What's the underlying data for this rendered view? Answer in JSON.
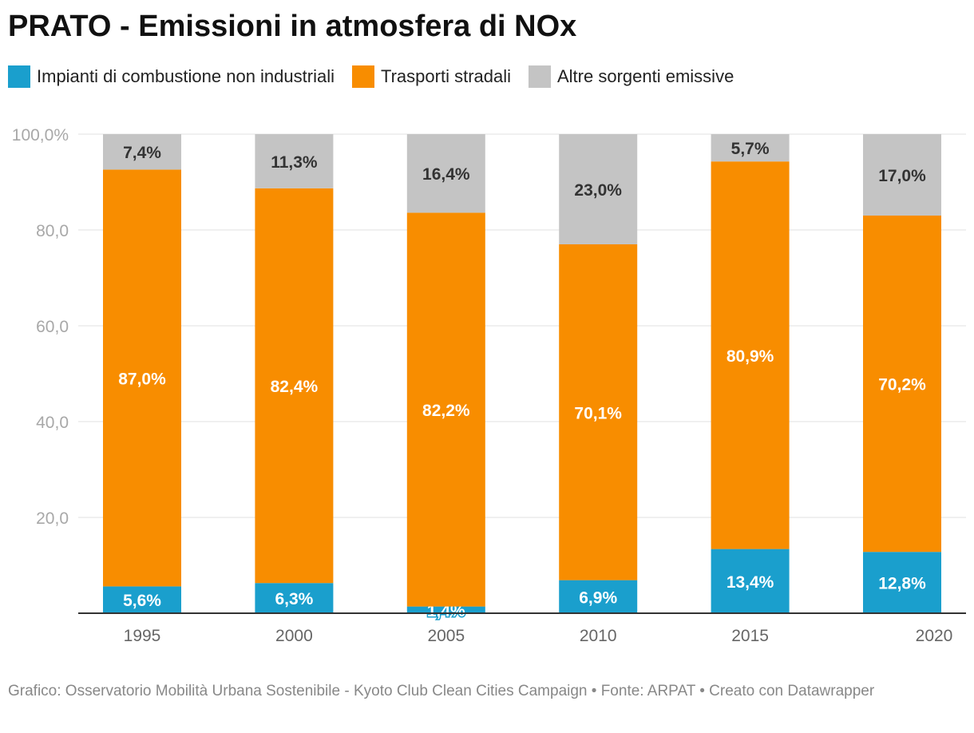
{
  "title": "PRATO - Emissioni in atmosfera di NOx",
  "legend": [
    {
      "label": "Impianti di combustione non industriali",
      "color": "#1a9fcd"
    },
    {
      "label": "Trasporti stradali",
      "color": "#f88d00"
    },
    {
      "label": "Altre sorgenti emissive",
      "color": "#c4c4c4"
    }
  ],
  "footer": "Grafico: Osservatorio Mobilità Urbana Sostenibile - Kyoto Club Clean Cities Campaign • Fonte: ARPAT • Creato con Datawrapper",
  "chart_data": {
    "type": "bar",
    "stacked": true,
    "title": "PRATO - Emissioni in atmosfera di NOx",
    "xlabel": "",
    "ylabel": "",
    "ylim": [
      0,
      100
    ],
    "yticks": [
      20,
      40,
      60,
      80,
      100
    ],
    "ytick_labels": [
      "20,0",
      "40,0",
      "60,0",
      "80,0",
      "100,0%"
    ],
    "categories": [
      "1995",
      "2000",
      "2005",
      "2010",
      "2015",
      "2020"
    ],
    "series": [
      {
        "name": "Impianti di combustione non industriali",
        "color": "#1a9fcd",
        "values": [
          5.6,
          6.3,
          1.4,
          6.9,
          13.4,
          12.8
        ],
        "labels": [
          "5,6%",
          "6,3%",
          "1,4%",
          "6,9%",
          "13,4%",
          "12,8%"
        ]
      },
      {
        "name": "Trasporti stradali",
        "color": "#f88d00",
        "values": [
          87.0,
          82.4,
          82.2,
          70.1,
          80.9,
          70.2
        ],
        "labels": [
          "87,0%",
          "82,4%",
          "82,2%",
          "70,1%",
          "80,9%",
          "70,2%"
        ]
      },
      {
        "name": "Altre sorgenti emissive",
        "color": "#c4c4c4",
        "values": [
          7.4,
          11.3,
          16.4,
          23.0,
          5.7,
          17.0
        ],
        "labels": [
          "7,4%",
          "11,3%",
          "16,4%",
          "23,0%",
          "5,7%",
          "17,0%"
        ]
      }
    ]
  }
}
